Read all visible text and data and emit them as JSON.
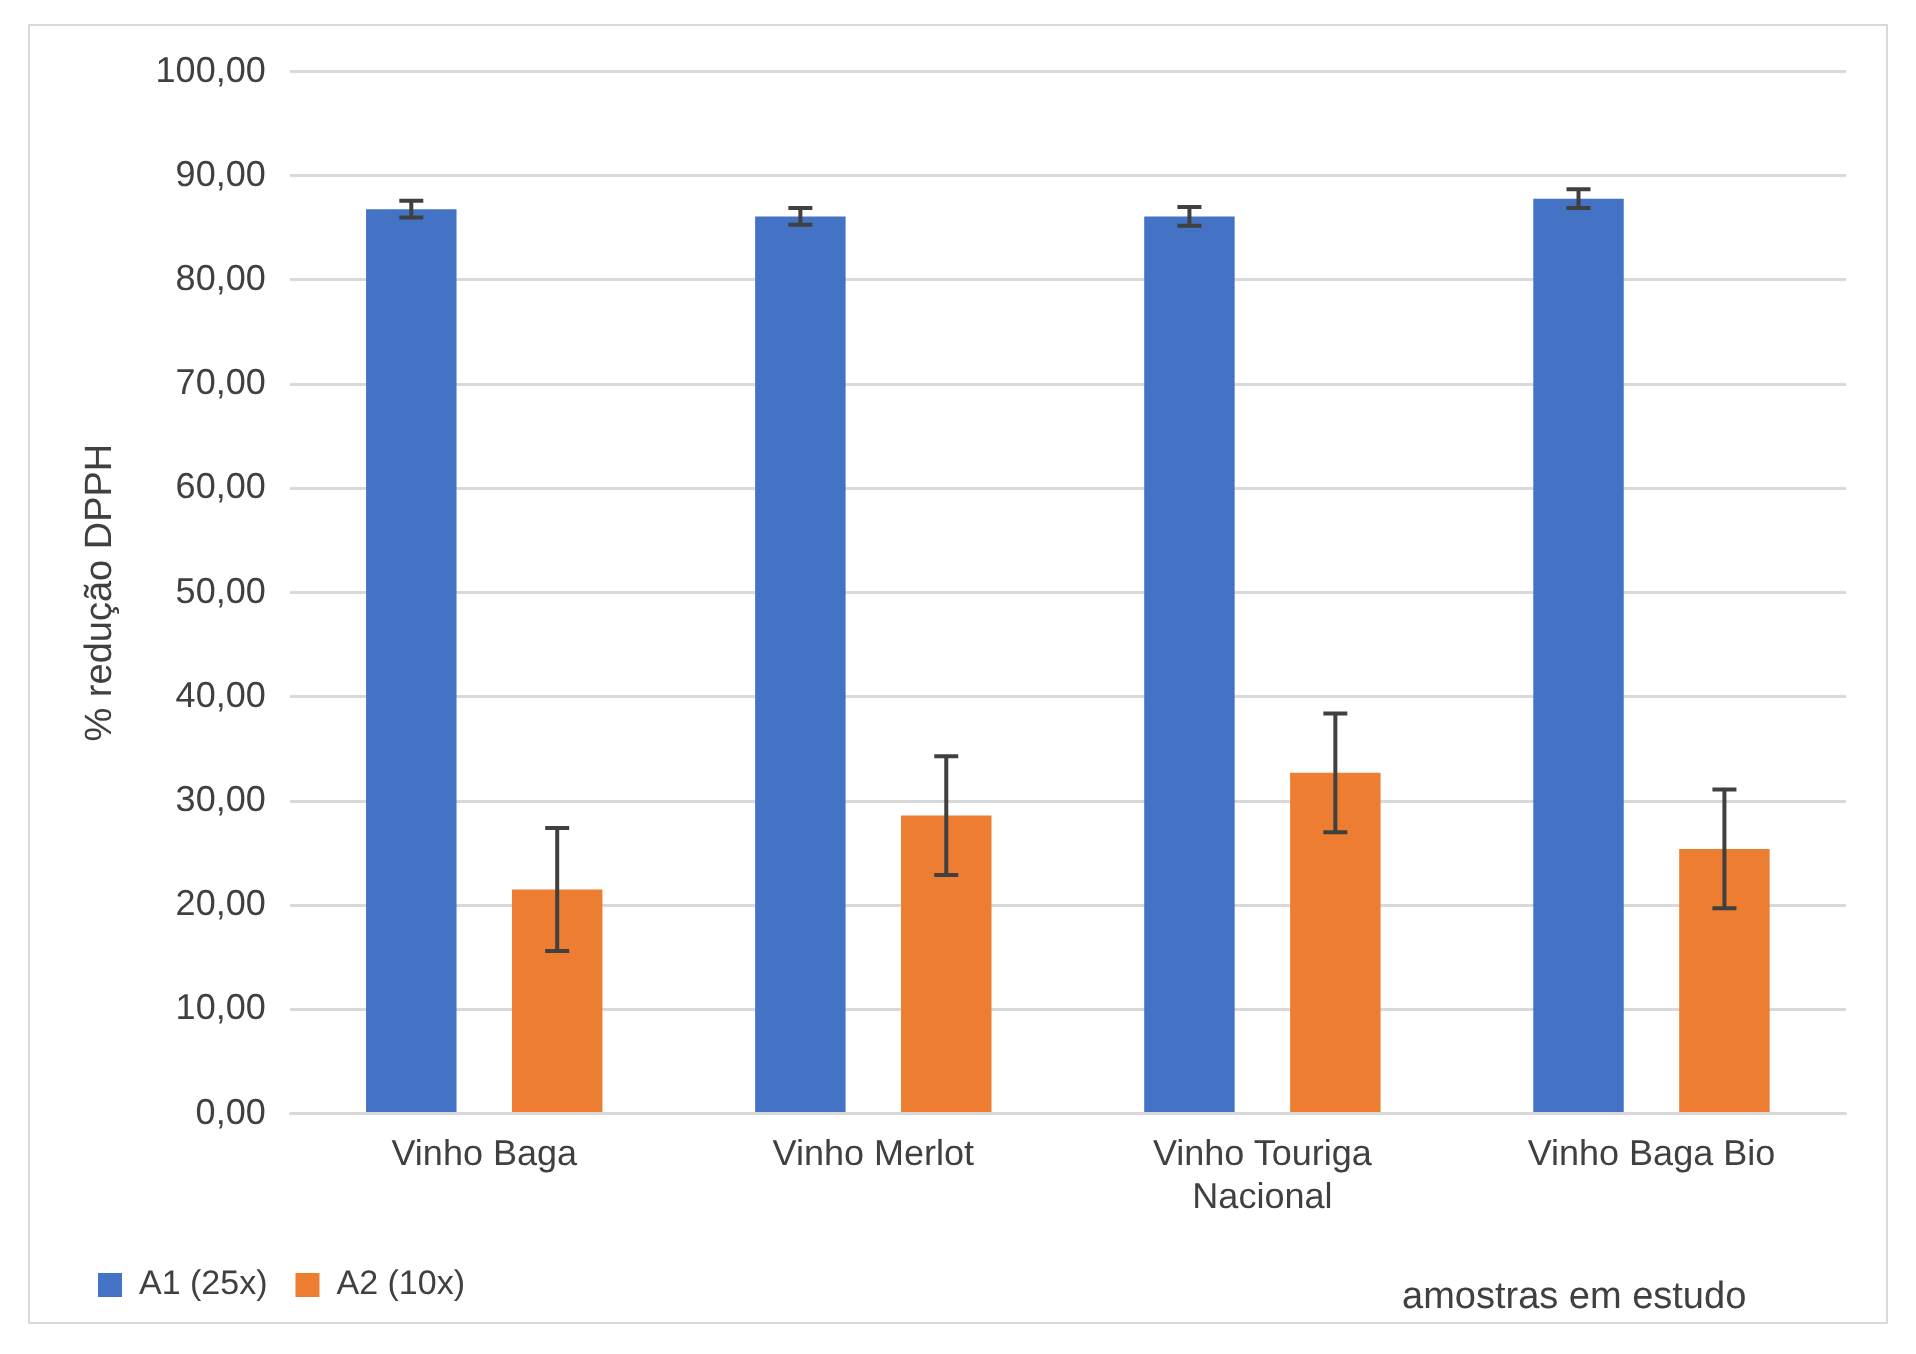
{
  "chart_data": {
    "type": "bar",
    "xlabel": "amostras em estudo",
    "ylabel": "% redução DPPH",
    "categories": [
      "Vinho Baga",
      "Vinho Merlot",
      "Vinho Touriga Nacional",
      "Vinho Baga Bio"
    ],
    "series": [
      {
        "name": "A1 (25x)",
        "color": "#4472c4",
        "values": [
          86.8,
          86.1,
          86.1,
          87.8
        ],
        "errors": [
          0.8,
          0.8,
          0.9,
          0.9
        ]
      },
      {
        "name": "A2 (10x)",
        "color": "#ed7d31",
        "values": [
          21.5,
          28.6,
          32.7,
          25.4
        ],
        "errors": [
          5.9,
          5.7,
          5.7,
          5.7
        ]
      }
    ],
    "ylim": [
      0,
      100
    ],
    "yticks": [
      {
        "value": 0,
        "label": "0,00"
      },
      {
        "value": 10,
        "label": "10,00"
      },
      {
        "value": 20,
        "label": "20,00"
      },
      {
        "value": 30,
        "label": "30,00"
      },
      {
        "value": 40,
        "label": "40,00"
      },
      {
        "value": 50,
        "label": "50,00"
      },
      {
        "value": 60,
        "label": "60,00"
      },
      {
        "value": 70,
        "label": "70,00"
      },
      {
        "value": 80,
        "label": "80,00"
      },
      {
        "value": 90,
        "label": "90,00"
      },
      {
        "value": 100,
        "label": "100,00"
      }
    ],
    "grid": "y",
    "legend": "bottom"
  }
}
